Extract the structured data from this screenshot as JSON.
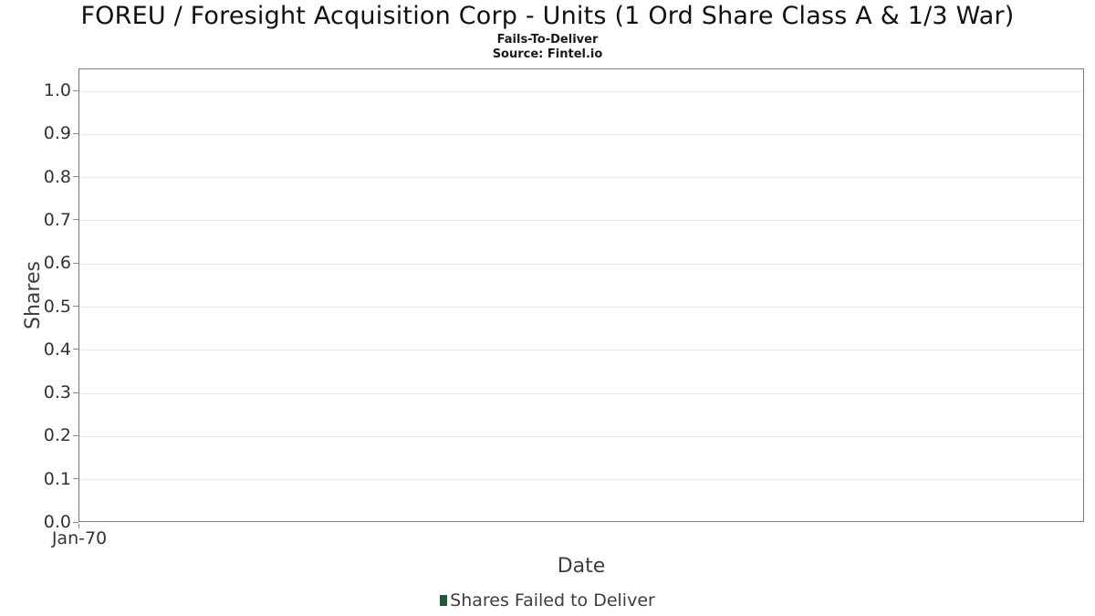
{
  "header": {
    "title": "FOREU / Foresight Acquisition Corp - Units (1 Ord Share Class A & 1/3 War)",
    "subtitle": "Fails-To-Deliver",
    "source": "Source: Fintel.io"
  },
  "chart_data": {
    "type": "bar",
    "title": "FOREU / Foresight Acquisition Corp - Units (1 Ord Share Class A & 1/3 War)",
    "subtitle": "Fails-To-Deliver",
    "source": "Source: Fintel.io",
    "xlabel": "Date",
    "ylabel": "Shares",
    "ylim": [
      0,
      1.05
    ],
    "grid": true,
    "x": [],
    "series": [
      {
        "name": "Shares Failed to Deliver",
        "values": []
      }
    ],
    "note_empty": "No data plotted; axes show default ranges",
    "xticks": [
      {
        "label": "Jan-70",
        "position": 0
      }
    ],
    "yticks": [
      {
        "label": "0.0",
        "value": 0.0
      },
      {
        "label": "0.1",
        "value": 0.1
      },
      {
        "label": "0.2",
        "value": 0.2
      },
      {
        "label": "0.3",
        "value": 0.3
      },
      {
        "label": "0.4",
        "value": 0.4
      },
      {
        "label": "0.5",
        "value": 0.5
      },
      {
        "label": "0.6",
        "value": 0.6
      },
      {
        "label": "0.7",
        "value": 0.7
      },
      {
        "label": "0.8",
        "value": 0.8
      },
      {
        "label": "0.9",
        "value": 0.9
      },
      {
        "label": "1.0",
        "value": 1.0
      }
    ],
    "legend": {
      "position": "bottom",
      "items": [
        {
          "label": "Shares Failed to Deliver",
          "marker_color": "#1f5c35"
        }
      ]
    },
    "colors": {
      "plot_border": "#7a7a7a",
      "gridline": "#e9e9e9",
      "tick_text": "#333333",
      "axis_label_text": "#3d3d3d",
      "title_text": "#111111",
      "series_green": "#1f5c35"
    }
  }
}
